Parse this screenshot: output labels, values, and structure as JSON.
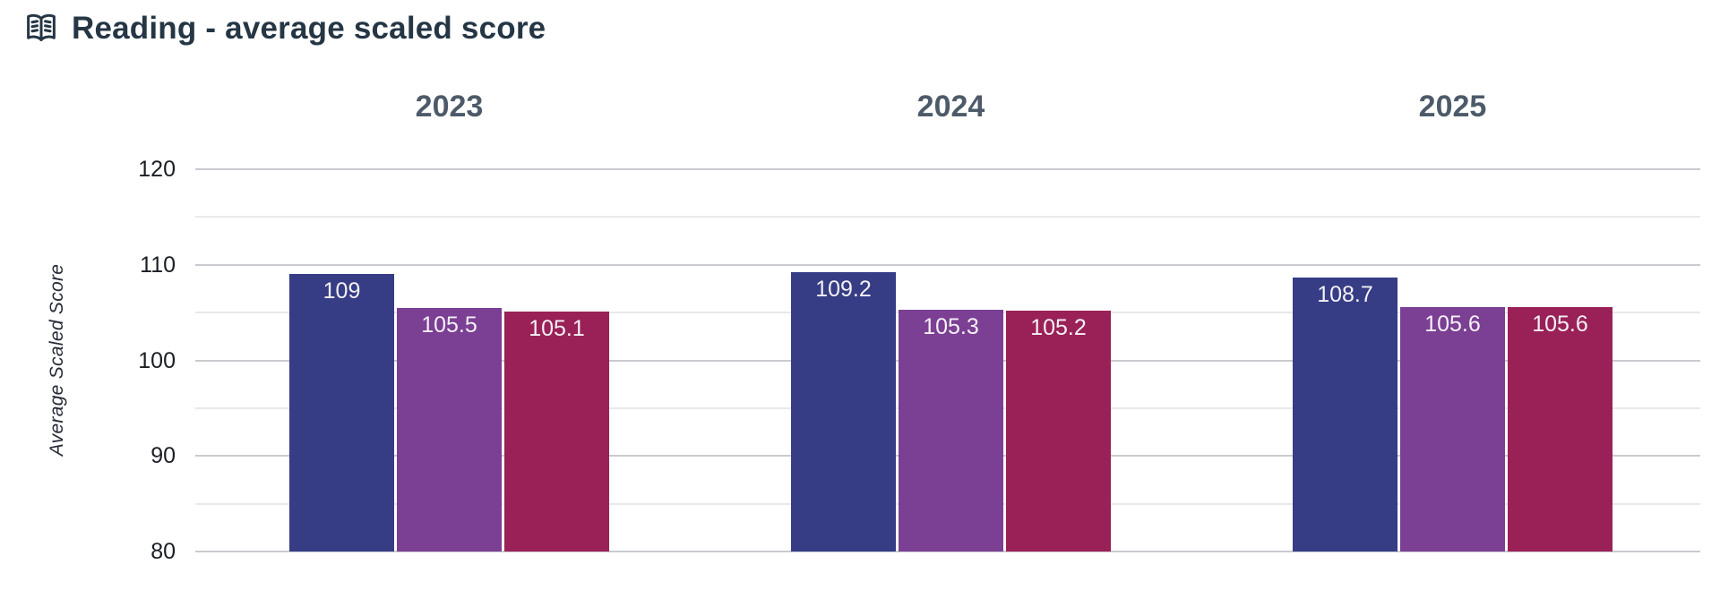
{
  "header": {
    "title": "Reading - average scaled score",
    "icon": "open-book-icon"
  },
  "chart_data": {
    "type": "bar",
    "title": "Reading - average scaled score",
    "xlabel": "",
    "ylabel": "Average Scaled Score",
    "ylim": [
      80,
      120
    ],
    "yticks": [
      80,
      90,
      100,
      110,
      120
    ],
    "minor_gridlines": [
      85,
      95,
      105,
      115
    ],
    "grid": true,
    "legend_position": "none",
    "categories": [
      "2023",
      "2024",
      "2025"
    ],
    "series": [
      {
        "name": "navy-series",
        "color": "#363D85",
        "values": [
          109,
          109.2,
          108.7
        ],
        "labels": [
          "109",
          "109.2",
          "108.7"
        ]
      },
      {
        "name": "purple-series",
        "color": "#7B3F94",
        "values": [
          105.5,
          105.3,
          105.6
        ],
        "labels": [
          "105.5",
          "105.3",
          "105.6"
        ]
      },
      {
        "name": "crimson-series",
        "color": "#9A2157",
        "values": [
          105.1,
          105.2,
          105.6
        ],
        "labels": [
          "105.1",
          "105.2",
          "105.6"
        ]
      }
    ]
  },
  "colors": {
    "background": "#FFFFFF",
    "title": "#253645",
    "year_label": "#4D5A69",
    "tick_label": "#1B1E24",
    "axis_title": "#252B36",
    "gridline_major": "#C8CBD0",
    "gridline_minor": "#E8E9EB",
    "bar_label": "#F4F1F5"
  }
}
